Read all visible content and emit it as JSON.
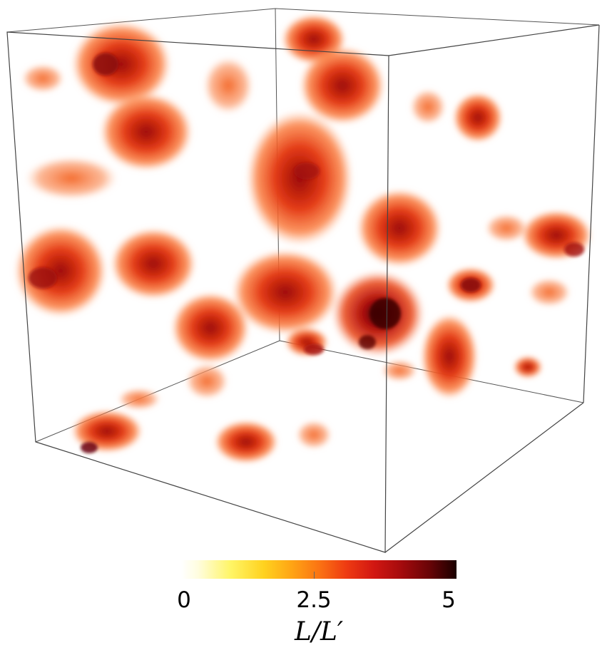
{
  "colorbar": {
    "ticks": [
      "0",
      "2.5",
      "5"
    ],
    "label": "L/L′",
    "colors": [
      "#ffffff",
      "#fff566",
      "#ffa514",
      "#ee3b12",
      "#a40b0d",
      "#1a0000"
    ]
  },
  "scene": {
    "description_icon": "volume-render-3d-cube"
  }
}
